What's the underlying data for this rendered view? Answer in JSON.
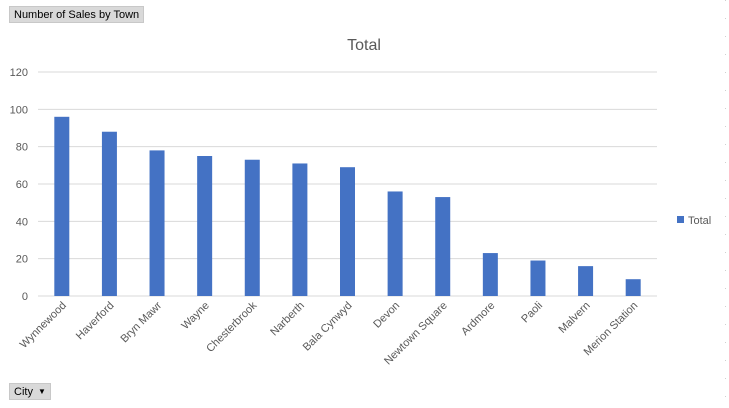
{
  "filter_button": {
    "label": "Number of Sales by Town"
  },
  "axis_field_button": {
    "label": "City",
    "icon": "dropdown-arrow-icon"
  },
  "colors": {
    "bar": "#4472c4",
    "grid": "#d9d9d9",
    "text": "#595959"
  },
  "chart_data": {
    "type": "bar",
    "title": "Total",
    "categories": [
      "Wynnewood",
      "Haverford",
      "Bryn Mawr",
      "Wayne",
      "Chesterbrook",
      "Narberth",
      "Bala Cynwyd",
      "Devon",
      "Newtown Square",
      "Ardmore",
      "Paoli",
      "Malvern",
      "Merion Station"
    ],
    "series": [
      {
        "name": "Total",
        "values": [
          96,
          88,
          78,
          75,
          73,
          71,
          69,
          56,
          53,
          23,
          19,
          16,
          9
        ]
      }
    ],
    "ylim": [
      0,
      120
    ],
    "yticks": [
      0,
      20,
      40,
      60,
      80,
      100,
      120
    ],
    "xlabel": "",
    "ylabel": "",
    "grid": true,
    "legend": "right"
  }
}
